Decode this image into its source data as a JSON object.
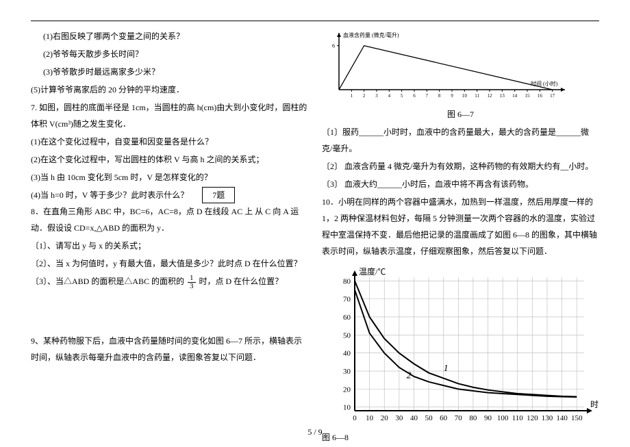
{
  "hr": {},
  "left": {
    "q1": "(1)右图反映了哪两个变量之间的关系？",
    "q2": "(2)爷爷每天散步多长时间？",
    "q3": "(3)爷爷散步时最远离家多少米？",
    "q5": "(5)计算爷爷离家后的 20 分钟的平均速度．",
    "p7": "7. 如图，圆柱的底面半径是 1cm，当圆柱的高 h(cm)由大到小变化时，圆柱的体积 V(cm³)随之发生变化．",
    "p7_1": "(1)在这个变化过程中，自变量和因变量各是什么？",
    "p7_2": "(2)在这个变化过程中，写出圆柱的体积 V 与高 h 之间的关系式；",
    "p7_3": "(3)当 h 由 10cm 变化到 5cm 时，V 是怎样变化的？",
    "p7_4": "(4)当 h=0 时，V 等于多少？此时表示什么？",
    "box7": "7题",
    "p8": "8．在直角三角形 ABC 中，BC=6，AC=8，点 D 在线段 AC 上 从 C 向 A 运动．假设设 CD=x,△ABD 的面积为 y．",
    "p8_1": "〔1〕、请写出 y 与 x 的关系式；",
    "p8_2": "〔2〕、当 x 为何值时，y 有最大值，最大值是多少？此时点 D 在什么位置？",
    "p8_3a": "〔3〕、当△ABD 的面积是△ABC 的面积的",
    "p8_3b": "时，点 D 在什么位置？",
    "frac_n": "1",
    "frac_d": "3",
    "p9": "9、某种药物服下后，血液中含药量随时间的变化如图 6—7 所示，横轴表示时间，纵轴表示每毫升血液中的含药量，读图象答复以下问题．"
  },
  "right": {
    "chart67": {
      "y_title": "血液含药量 (微克/毫升)",
      "x_title": "时间 (小时)",
      "caption": "图 6—7",
      "x_ticks": [
        "1",
        "2",
        "3",
        "4",
        "5",
        "6",
        "7",
        "8",
        "9",
        "10",
        "11",
        "12",
        "13",
        "14",
        "15",
        "16",
        "17"
      ],
      "peak_y": 6,
      "peak_x": 2,
      "end_x": 17,
      "axis_color": "#000000",
      "line_color": "#000000",
      "tick_fontsize": 7
    },
    "r1": "〔1〕服药______小时时，血液中的含药量最大，最大的含药量是______微克/毫升。",
    "r2": "〔2〕  血液含药量 4 微克/毫升为有效期，这种药物的有效期大约有__小时。",
    "r3": "〔3〕  血液大约______小时后，血液中将不再含有该药物。",
    "p10": "10．小明在同样的两个容器中盛满水，加热到一样温度，然后用厚度一样的 1，2 两种保温材料包好，每隔 5 分钟测量一次两个容器的水的温度，实验过程中室温保持不变．最后他把记录的温度画成了如图 6—8 的图象，其中横轴表示时间，纵轴表示温度，仔细观察图象，然后答复以下问题．",
    "chart68": {
      "y_title": "温度/℃",
      "x_title": "时",
      "caption": "图 6—8",
      "x_ticks": [
        0,
        10,
        20,
        30,
        40,
        50,
        60,
        70,
        80,
        90,
        100,
        110,
        120,
        130,
        140,
        150
      ],
      "y_ticks": [
        10,
        20,
        30,
        40,
        50,
        60,
        70,
        80
      ],
      "grid_color": "#b8b8b8",
      "axis_color": "#000000",
      "line_color": "#000000",
      "curve1_label": "1",
      "curve2_label": "2",
      "curve1": [
        [
          0,
          80
        ],
        [
          10,
          60
        ],
        [
          20,
          48
        ],
        [
          30,
          40
        ],
        [
          40,
          34
        ],
        [
          50,
          29
        ],
        [
          60,
          26
        ],
        [
          70,
          23
        ],
        [
          80,
          21
        ],
        [
          90,
          19.5
        ],
        [
          100,
          18.5
        ],
        [
          110,
          17.5
        ],
        [
          120,
          17
        ],
        [
          130,
          16.5
        ],
        [
          140,
          16
        ],
        [
          150,
          15.8
        ]
      ],
      "curve2": [
        [
          0,
          75
        ],
        [
          10,
          51
        ],
        [
          20,
          40
        ],
        [
          30,
          32
        ],
        [
          40,
          27
        ],
        [
          50,
          24
        ],
        [
          60,
          22
        ],
        [
          70,
          20
        ],
        [
          80,
          19
        ],
        [
          90,
          18
        ],
        [
          100,
          17.5
        ],
        [
          110,
          17
        ],
        [
          120,
          16.5
        ],
        [
          130,
          16
        ],
        [
          140,
          15.8
        ],
        [
          150,
          15.6
        ]
      ],
      "label_fontsize": 14
    }
  },
  "pagenum": "5 / 9"
}
